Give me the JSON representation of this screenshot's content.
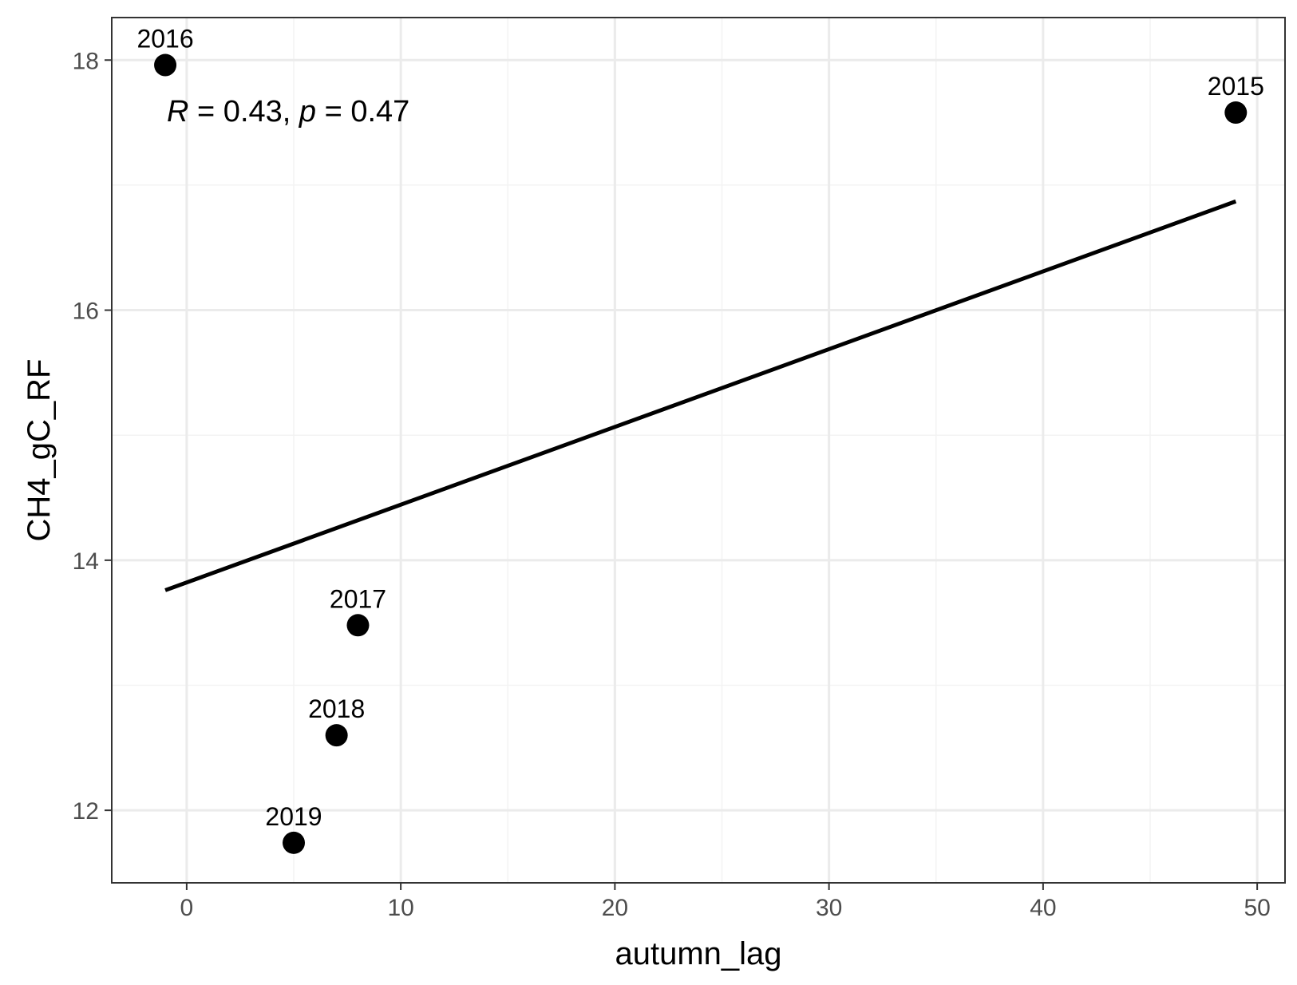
{
  "chart_data": {
    "type": "scatter",
    "title": "",
    "xlabel": "autumn_lag",
    "ylabel": "CH4_gC_RF",
    "xlim": [
      -3.5,
      51.3
    ],
    "ylim": [
      11.42,
      18.34
    ],
    "x_ticks": [
      0,
      10,
      20,
      30,
      40,
      50
    ],
    "y_ticks": [
      12,
      14,
      16,
      18
    ],
    "x_tick_labels": [
      "0",
      "10",
      "20",
      "30",
      "40",
      "50"
    ],
    "y_tick_labels": [
      "12",
      "14",
      "16",
      "18"
    ],
    "grid": true,
    "legend": "none",
    "points": [
      {
        "x": -1,
        "y": 17.96,
        "label": "2016"
      },
      {
        "x": 49,
        "y": 17.58,
        "label": "2015"
      },
      {
        "x": 8,
        "y": 13.48,
        "label": "2017"
      },
      {
        "x": 7,
        "y": 12.6,
        "label": "2018"
      },
      {
        "x": 5,
        "y": 11.74,
        "label": "2019"
      }
    ],
    "fit_line": {
      "x": [
        -1,
        49
      ],
      "y": [
        13.76,
        16.87
      ]
    },
    "annotation": {
      "r_symbol": "R",
      "r_rest": " = 0.43, ",
      "p_symbol": "p",
      "p_rest": " = 0.47",
      "x": -1,
      "y": 17.6
    },
    "colors": {
      "points": "#000000",
      "line": "#000000",
      "grid_major": "#ebebeb",
      "grid_minor": "#f3f3f3",
      "panel_border": "#333333"
    }
  }
}
